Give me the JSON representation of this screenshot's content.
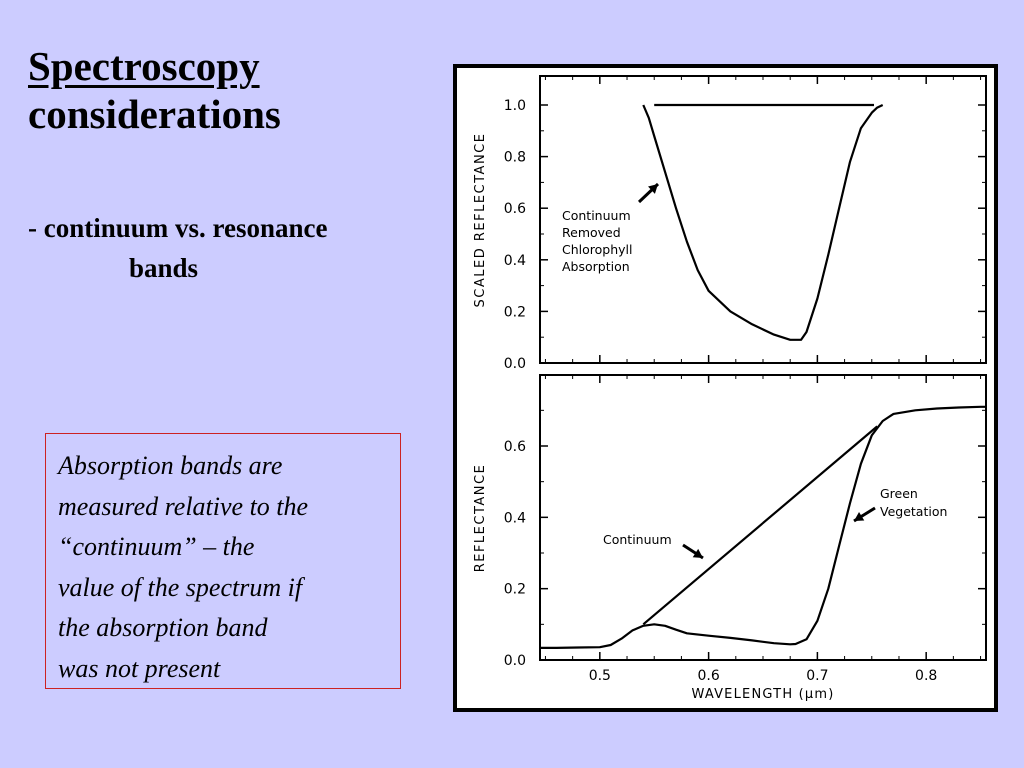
{
  "slide": {
    "title_line1": "Spectroscopy",
    "title_line2": "considerations",
    "bullet_line1": "- continuum vs. resonance",
    "bullet_line2": "bands",
    "note_lines": [
      "Absorption bands are",
      "measured relative to the",
      "“continuum” – the",
      "value of  the spectrum if",
      "the absorption band",
      "was not present"
    ],
    "colors": {
      "background": "#ccccff",
      "note_border": "#cc2222"
    }
  },
  "chart_data": [
    {
      "type": "line",
      "ylabel": "SCALED  REFLECTANCE",
      "ylim": [
        0.0,
        1.0
      ],
      "xlim": [
        0.445,
        0.855
      ],
      "yticks": [
        "0.0",
        "0.2",
        "0.4",
        "0.6",
        "0.8",
        "1.0"
      ],
      "series": [
        {
          "name": "Continuum Removed Chlorophyll Absorption",
          "x": [
            0.54,
            0.545,
            0.55,
            0.56,
            0.57,
            0.58,
            0.59,
            0.6,
            0.62,
            0.64,
            0.66,
            0.675,
            0.685,
            0.69,
            0.7,
            0.71,
            0.72,
            0.73,
            0.74,
            0.75,
            0.755,
            0.76
          ],
          "y": [
            1.0,
            0.95,
            0.88,
            0.74,
            0.6,
            0.47,
            0.36,
            0.28,
            0.2,
            0.15,
            0.11,
            0.09,
            0.09,
            0.12,
            0.25,
            0.42,
            0.6,
            0.78,
            0.91,
            0.97,
            0.99,
            1.0
          ]
        },
        {
          "name": "Continuum",
          "x": [
            0.55,
            0.752
          ],
          "y": [
            1.0,
            1.0
          ]
        }
      ],
      "annotations": [
        "Continuum",
        "Removed",
        "Chlorophyll",
        "Absorption"
      ]
    },
    {
      "type": "line",
      "xlabel": "WAVELENGTH  (µm)",
      "ylabel": "REFLECTANCE",
      "xlim": [
        0.445,
        0.855
      ],
      "ylim": [
        0.0,
        0.72
      ],
      "xticks": [
        "0.5",
        "0.6",
        "0.7",
        "0.8"
      ],
      "yticks": [
        "0.0",
        "0.2",
        "0.4",
        "0.6"
      ],
      "series": [
        {
          "name": "Green Vegetation",
          "x": [
            0.445,
            0.46,
            0.48,
            0.5,
            0.51,
            0.52,
            0.53,
            0.54,
            0.55,
            0.56,
            0.57,
            0.58,
            0.6,
            0.62,
            0.64,
            0.66,
            0.675,
            0.68,
            0.69,
            0.7,
            0.71,
            0.72,
            0.73,
            0.74,
            0.75,
            0.76,
            0.77,
            0.79,
            0.81,
            0.83,
            0.85,
            0.855
          ],
          "y": [
            0.034,
            0.034,
            0.035,
            0.036,
            0.042,
            0.06,
            0.083,
            0.096,
            0.1,
            0.096,
            0.085,
            0.075,
            0.068,
            0.062,
            0.055,
            0.047,
            0.044,
            0.045,
            0.058,
            0.11,
            0.2,
            0.32,
            0.44,
            0.55,
            0.63,
            0.67,
            0.69,
            0.7,
            0.705,
            0.708,
            0.71,
            0.71
          ]
        },
        {
          "name": "Continuum",
          "x": [
            0.54,
            0.755
          ],
          "y": [
            0.1,
            0.655
          ]
        }
      ],
      "annotations": [
        "Continuum",
        "Green",
        "Vegetation"
      ]
    }
  ]
}
